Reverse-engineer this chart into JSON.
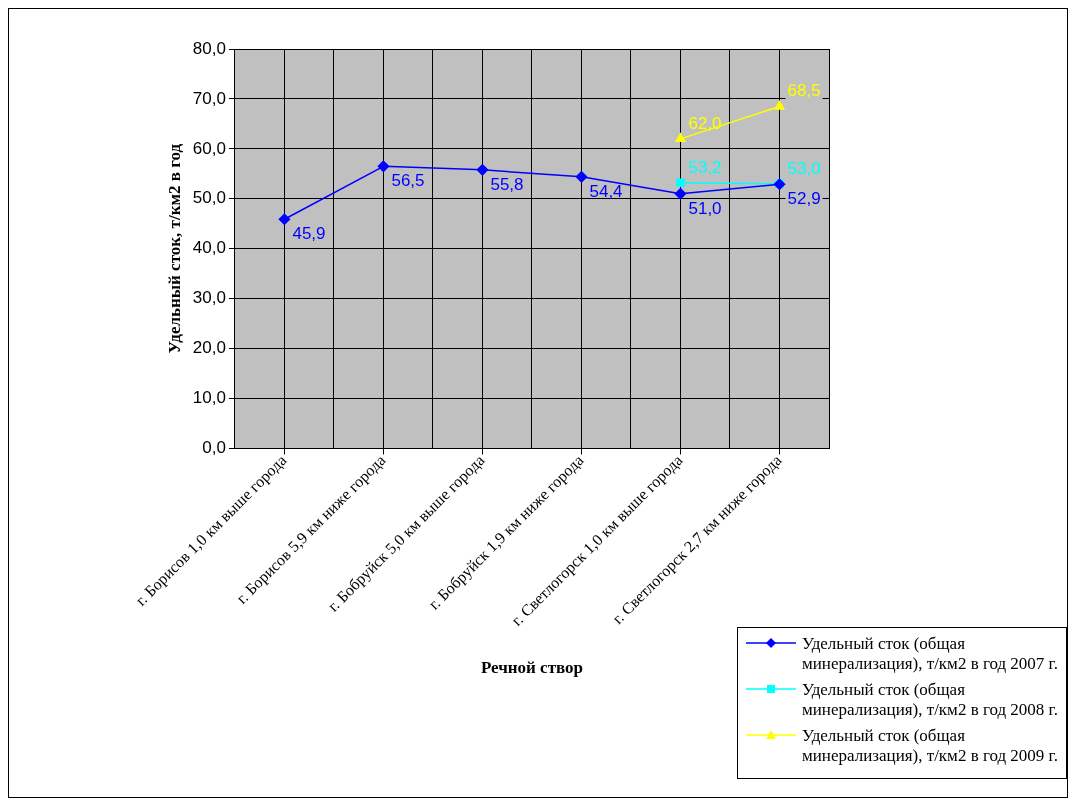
{
  "chart_data": {
    "type": "line",
    "xlabel": "Речной створ",
    "ylabel": "Удельный сток, т/км2 в год",
    "categories": [
      "г. Борисов 1,0 км выше города",
      "г. Борисов 5,9 км ниже города",
      "г. Бобруйск 5,0 км выше города",
      "г. Бобруйск 1,9 км ниже города",
      "г. Светлогорск 1,0 км выше города",
      "г. Светлогорск 2,7 км ниже города"
    ],
    "series": [
      {
        "name": "Удельный сток (общая минерализация), т/км2 в год 2007 г.",
        "color": "#0000ff",
        "marker": "diamond",
        "values": [
          45.9,
          56.5,
          55.8,
          54.4,
          51.0,
          52.9
        ],
        "value_labels": [
          "45,9",
          "56,5",
          "55,8",
          "54,4",
          "51,0",
          "52,9"
        ]
      },
      {
        "name": "Удельный сток (общая минерализация), т/км2 в год 2008 г.",
        "color": "#00ffff",
        "marker": "square",
        "values": [
          null,
          null,
          null,
          null,
          53.2,
          53.0
        ],
        "value_labels": [
          null,
          null,
          null,
          null,
          "53,2",
          "53,0"
        ]
      },
      {
        "name": "Удельный сток (общая минерализация), т/км2 в год 2009 г.",
        "color": "#ffff00",
        "marker": "triangle",
        "values": [
          null,
          null,
          null,
          null,
          62.0,
          68.5
        ],
        "value_labels": [
          null,
          null,
          null,
          null,
          "62,0",
          "68,5"
        ]
      }
    ],
    "ylim": [
      0,
      80
    ],
    "yticks": [
      {
        "value": 0,
        "label": "0,0"
      },
      {
        "value": 10,
        "label": "10,0"
      },
      {
        "value": 20,
        "label": "20,0"
      },
      {
        "value": 30,
        "label": "30,0"
      },
      {
        "value": 40,
        "label": "40,0"
      },
      {
        "value": 50,
        "label": "50,0"
      },
      {
        "value": 60,
        "label": "60,0"
      },
      {
        "value": 70,
        "label": "70,0"
      },
      {
        "value": 80,
        "label": "80,0"
      }
    ],
    "grid": true,
    "legend": "bottom right",
    "line_style": "solid"
  }
}
